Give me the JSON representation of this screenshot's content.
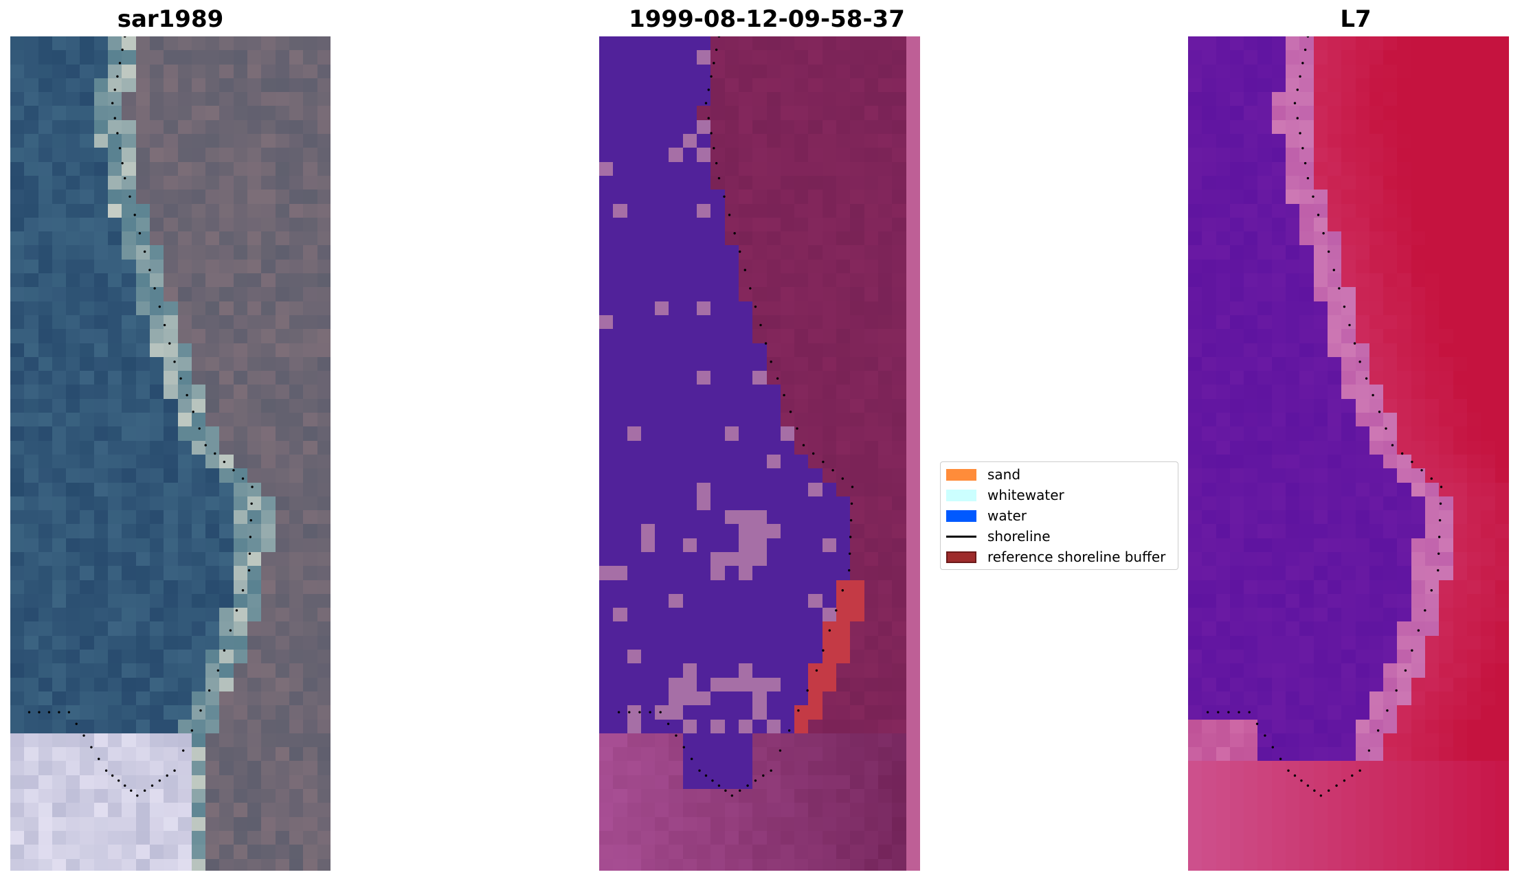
{
  "panels": [
    {
      "id": "rgb",
      "title": "sar1989"
    },
    {
      "id": "classification",
      "title": "1999-08-12-09-58-37"
    },
    {
      "id": "index",
      "title": "L7"
    }
  ],
  "legend": {
    "items": [
      {
        "label": "sand",
        "kind": "patch",
        "color": "#ff8c3a"
      },
      {
        "label": "whitewater",
        "kind": "patch",
        "color": "#ccffff"
      },
      {
        "label": "water",
        "kind": "patch",
        "color": "#0059ff"
      },
      {
        "label": "shoreline",
        "kind": "line",
        "color": "#000000"
      },
      {
        "label": "reference shoreline buffer",
        "kind": "patch",
        "color": "#9e2b2b",
        "edge": "#6b1a1a"
      }
    ]
  },
  "colors": {
    "classified_water": "#51229a",
    "classified_land": "#84275c",
    "whitewater_patch": "#a66fa6",
    "buffer_red": "#c43a45",
    "index_water": "#6a1aa3",
    "index_land": "#c5133f"
  }
}
